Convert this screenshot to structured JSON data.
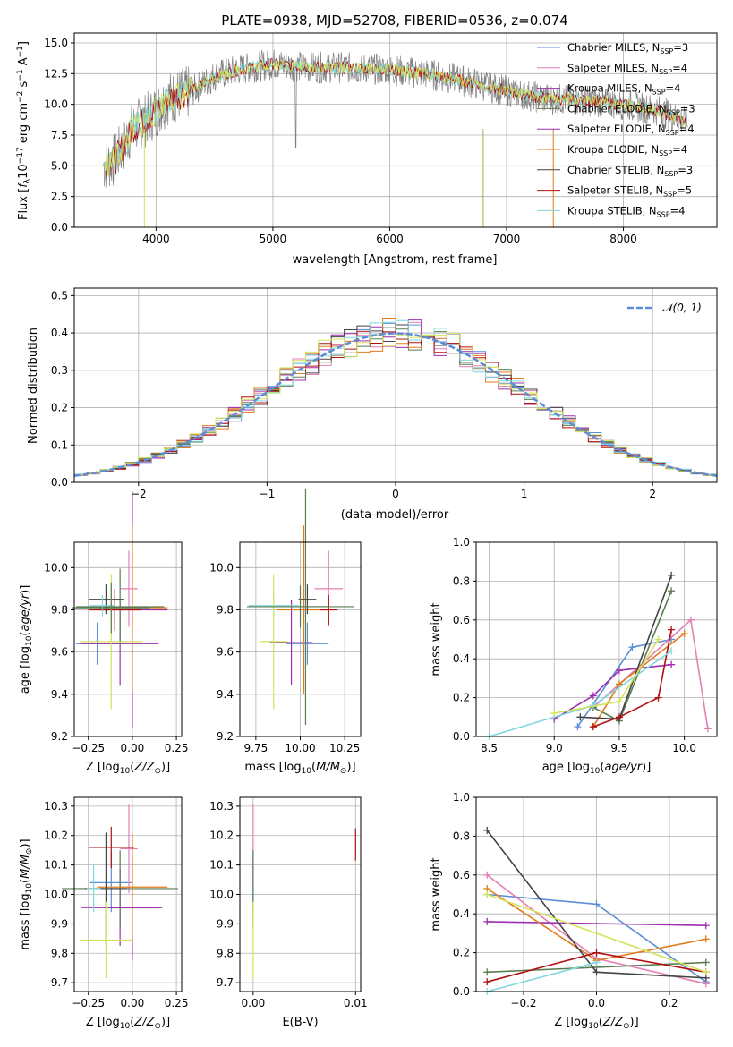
{
  "colors": {
    "Chabrier MILES": "#5b8ed6",
    "Salpeter MILES": "#e47fb4",
    "Kroupa MILES": "#9c2fae",
    "Chabrier ELODIE": "#5a7c52",
    "Salpeter ELODIE": "#9c2fae",
    "Kroupa ELODIE": "#e07b1c",
    "Chabrier STELIB": "#444444",
    "Salpeter STELIB": "#b01010",
    "Kroupa STELIB": "#7fd6dc",
    "Extra": "#d4e45a",
    "spectrum": "#808080",
    "normal": "#5b8ed6",
    "grid": "#b0b0b0"
  },
  "chart_data": [
    {
      "type": "line",
      "title": "PLATE=0938, MJD=52708, FIBERID=0536, z=0.074",
      "xlabel": "wavelength [Angstrom, rest frame]",
      "ylabel": "Flux [f_λ10^-17 erg cm^-2 s^-1 A^-1]",
      "xlim": [
        3300,
        8800
      ],
      "ylim": [
        0,
        15.8
      ],
      "xticks": [
        4000,
        5000,
        6000,
        7000,
        8000
      ],
      "yticks": [
        0.0,
        2.5,
        5.0,
        7.5,
        10.0,
        12.5,
        15.0
      ],
      "ytick_labels": [
        "0.0",
        "2.5",
        "5.0",
        "7.5",
        "10.0",
        "12.5",
        "15.0"
      ],
      "legend_position": "top-right",
      "legend": [
        "Chabrier MILES, N_SSP=3",
        "Salpeter MILES, N_SSP=4",
        "Kroupa MILES, N_SSP=4",
        "Chabrier ELODIE, N_SSP=3",
        "Salpeter ELODIE, N_SSP=4",
        "Kroupa ELODIE, N_SSP=4",
        "Chabrier STELIB, N_SSP=3",
        "Salpeter STELIB, N_SSP=5",
        "Kroupa STELIB, N_SSP=4"
      ],
      "continuum": [
        [
          3550,
          5.0
        ],
        [
          3650,
          5.5
        ],
        [
          3800,
          8.0
        ],
        [
          3950,
          9.0
        ],
        [
          4100,
          10.5
        ],
        [
          4300,
          11.0
        ],
        [
          4500,
          12.3
        ],
        [
          4700,
          12.8
        ],
        [
          5000,
          13.3
        ],
        [
          5300,
          13.0
        ],
        [
          5600,
          13.0
        ],
        [
          6000,
          12.8
        ],
        [
          6300,
          12.5
        ],
        [
          6600,
          12.0
        ],
        [
          6900,
          11.3
        ],
        [
          7300,
          10.5
        ],
        [
          7700,
          10.3
        ],
        [
          8000,
          10.0
        ],
        [
          8300,
          9.5
        ],
        [
          8550,
          8.5
        ]
      ]
    },
    {
      "type": "histogram",
      "xlabel": "(data-model)/error",
      "ylabel": "Normed distribution",
      "xlim": [
        -2.5,
        2.5
      ],
      "ylim": [
        0,
        0.52
      ],
      "xticks": [
        -2,
        -1,
        0,
        1,
        2
      ],
      "yticks": [
        0.0,
        0.1,
        0.2,
        0.3,
        0.4,
        0.5
      ],
      "ytick_labels": [
        "0.0",
        "0.1",
        "0.2",
        "0.3",
        "0.4",
        "0.5"
      ],
      "legend_position": "top-right",
      "legend": [
        "𝒩(0, 1)"
      ],
      "bin_width": 0.1
    },
    {
      "type": "scatter",
      "xlabel": "Z [log10(Z/Z⊙)]",
      "ylabel": "age  [log10(age/yr)]",
      "xlim": [
        -0.33,
        0.28
      ],
      "ylim": [
        9.2,
        10.12
      ],
      "xticks": [
        -0.25,
        0.0,
        0.25
      ],
      "xtick_labels": [
        "−0.25",
        "0.00",
        "0.25"
      ],
      "yticks": [
        9.2,
        9.4,
        9.6,
        9.8,
        10.0
      ],
      "ytick_labels": [
        "9.2",
        "9.4",
        "9.6",
        "9.8",
        "10.0"
      ],
      "points": [
        {
          "x": -0.2,
          "y": 9.64,
          "xe": 0.12,
          "ye": 0.1,
          "c": "#5b8ed6"
        },
        {
          "x": -0.02,
          "y": 9.9,
          "xe": 0.05,
          "ye": 0.18,
          "c": "#e47fb4"
        },
        {
          "x": -0.07,
          "y": 9.64,
          "xe": 0.22,
          "ye": 0.2,
          "c": "#9c2fae"
        },
        {
          "x": -0.07,
          "y": 9.815,
          "xe": 0.25,
          "ye": 0.18,
          "c": "#5a7c52"
        },
        {
          "x": 0.0,
          "y": 9.8,
          "xe": 0.2,
          "ye": 0.56,
          "c": "#9c2fae"
        },
        {
          "x": 0.0,
          "y": 9.81,
          "xe": 0.2,
          "ye": 0.4,
          "c": "#e07b1c"
        },
        {
          "x": -0.15,
          "y": 9.85,
          "xe": 0.1,
          "ye": 0.07,
          "c": "#444444"
        },
        {
          "x": -0.1,
          "y": 9.8,
          "xe": 0.15,
          "ye": 0.1,
          "c": "#b01010"
        },
        {
          "x": -0.17,
          "y": 9.82,
          "xe": 0.07,
          "ye": 0.05,
          "c": "#7fd6dc"
        },
        {
          "x": -0.12,
          "y": 9.65,
          "xe": 0.18,
          "ye": 0.32,
          "c": "#d4e45a"
        },
        {
          "x": -0.12,
          "y": 9.81,
          "xe": 0.22,
          "ye": 0.12,
          "c": "#5a7c52"
        }
      ]
    },
    {
      "type": "scatter",
      "xlabel": "mass [log10(M/M⊙)]",
      "ylabel": "",
      "xlim": [
        9.66,
        10.34
      ],
      "ylim": [
        9.2,
        10.12
      ],
      "xticks": [
        9.75,
        10.0,
        10.25
      ],
      "xtick_labels": [
        "9.75",
        "10.00",
        "10.25"
      ],
      "yticks": [
        9.2,
        9.4,
        9.6,
        9.8,
        10.0
      ],
      "ytick_labels": [
        "9.2",
        "9.4",
        "9.6",
        "9.8",
        "10.0"
      ],
      "points": [
        {
          "x": 10.04,
          "y": 9.64,
          "xe": 0.12,
          "ye": 0.1,
          "c": "#5b8ed6"
        },
        {
          "x": 10.16,
          "y": 9.9,
          "xe": 0.08,
          "ye": 0.18,
          "c": "#e47fb4"
        },
        {
          "x": 9.95,
          "y": 9.645,
          "xe": 0.12,
          "ye": 0.2,
          "c": "#9c2fae"
        },
        {
          "x": 10.03,
          "y": 9.815,
          "xe": 0.12,
          "ye": 0.56,
          "c": "#5a7c52"
        },
        {
          "x": 10.02,
          "y": 9.8,
          "xe": 0.15,
          "ye": 0.4,
          "c": "#e07b1c"
        },
        {
          "x": 10.04,
          "y": 9.85,
          "xe": 0.05,
          "ye": 0.07,
          "c": "#444444"
        },
        {
          "x": 10.16,
          "y": 9.8,
          "xe": 0.05,
          "ye": 0.07,
          "c": "#b01010"
        },
        {
          "x": 9.85,
          "y": 9.82,
          "xe": 0.14,
          "ye": 0.05,
          "c": "#7fd6dc"
        },
        {
          "x": 9.85,
          "y": 9.65,
          "xe": 0.08,
          "ye": 0.32,
          "c": "#d4e45a"
        },
        {
          "x": 10.0,
          "y": 9.815,
          "xe": 0.3,
          "ye": 0.1,
          "c": "#5a7c52"
        }
      ]
    },
    {
      "type": "line",
      "xlabel": "age  [log10(age/yr)]",
      "ylabel": "mass weight",
      "xlim": [
        8.4,
        10.25
      ],
      "ylim": [
        0,
        1.0
      ],
      "xticks": [
        8.5,
        9.0,
        9.5,
        10.0
      ],
      "xtick_labels": [
        "8.5",
        "9.0",
        "9.5",
        "10.0"
      ],
      "yticks": [
        0.0,
        0.2,
        0.4,
        0.6,
        0.8,
        1.0
      ],
      "ytick_labels": [
        "0.0",
        "0.2",
        "0.4",
        "0.6",
        "0.8",
        "1.0"
      ],
      "series": [
        {
          "c": "#5b8ed6",
          "x": [
            9.18,
            9.6,
            9.9
          ],
          "y": [
            0.05,
            0.46,
            0.5
          ]
        },
        {
          "c": "#e47fb4",
          "x": [
            9.3,
            10.05,
            10.18
          ],
          "y": [
            0.15,
            0.6,
            0.04
          ]
        },
        {
          "c": "#9c2fae",
          "x": [
            9.0,
            9.3,
            9.5,
            9.9
          ],
          "y": [
            0.09,
            0.21,
            0.34,
            0.37
          ]
        },
        {
          "c": "#5a7c52",
          "x": [
            9.3,
            9.5,
            9.9
          ],
          "y": [
            0.15,
            0.08,
            0.75
          ]
        },
        {
          "c": "#e07b1c",
          "x": [
            9.3,
            9.5,
            10.0
          ],
          "y": [
            0.05,
            0.27,
            0.53
          ]
        },
        {
          "c": "#444444",
          "x": [
            9.2,
            9.5,
            9.9
          ],
          "y": [
            0.1,
            0.09,
            0.83
          ]
        },
        {
          "c": "#b01010",
          "x": [
            9.3,
            9.5,
            9.8,
            9.9
          ],
          "y": [
            0.05,
            0.1,
            0.2,
            0.55
          ]
        },
        {
          "c": "#7fd6dc",
          "x": [
            8.5,
            9.3,
            9.9
          ],
          "y": [
            0.0,
            0.16,
            0.44
          ]
        },
        {
          "c": "#d4e45a",
          "x": [
            9.0,
            9.5,
            9.8
          ],
          "y": [
            0.12,
            0.18,
            0.5
          ]
        }
      ]
    },
    {
      "type": "scatter",
      "xlabel": "Z [log10(Z/Z⊙)]",
      "ylabel": "mass [log10(M/M⊙)]",
      "xlim": [
        -0.33,
        0.28
      ],
      "ylim": [
        9.67,
        10.33
      ],
      "xticks": [
        -0.25,
        0.0,
        0.25
      ],
      "xtick_labels": [
        "−0.25",
        "0.00",
        "0.25"
      ],
      "yticks": [
        9.7,
        9.8,
        9.9,
        10.0,
        10.1,
        10.2,
        10.3
      ],
      "ytick_labels": [
        "9.7",
        "9.8",
        "9.9",
        "10.0",
        "10.1",
        "10.2",
        "10.3"
      ],
      "points": [
        {
          "x": -0.12,
          "y": 10.04,
          "xe": 0.12,
          "ye": 0.1,
          "c": "#5b8ed6"
        },
        {
          "x": -0.02,
          "y": 10.155,
          "xe": 0.05,
          "ye": 0.15,
          "c": "#e47fb4"
        },
        {
          "x": -0.07,
          "y": 9.955,
          "xe": 0.22,
          "ye": 0.13,
          "c": "#9c2fae"
        },
        {
          "x": -0.07,
          "y": 10.02,
          "xe": 0.33,
          "ye": 0.13,
          "c": "#5a7c52"
        },
        {
          "x": 0.0,
          "y": 9.955,
          "xe": 0.17,
          "ye": 0.18,
          "c": "#9c2fae"
        },
        {
          "x": 0.0,
          "y": 10.025,
          "xe": 0.2,
          "ye": 0.18,
          "c": "#e07b1c"
        },
        {
          "x": -0.15,
          "y": 10.02,
          "xe": 0.12,
          "ye": 0.19,
          "c": "#444444"
        },
        {
          "x": -0.12,
          "y": 10.16,
          "xe": 0.13,
          "ye": 0.07,
          "c": "#b01010"
        },
        {
          "x": -0.22,
          "y": 10.02,
          "xe": 0.04,
          "ye": 0.08,
          "c": "#7fd6dc"
        },
        {
          "x": -0.15,
          "y": 9.845,
          "xe": 0.15,
          "ye": 0.13,
          "c": "#d4e45a"
        }
      ]
    },
    {
      "type": "scatter",
      "xlabel": "E(B-V)",
      "ylabel": "",
      "xlim": [
        -0.0013,
        0.0105
      ],
      "ylim": [
        9.67,
        10.33
      ],
      "xticks": [
        0.0,
        0.01
      ],
      "xtick_labels": [
        "0.00",
        "0.01"
      ],
      "yticks": [
        9.7,
        9.8,
        9.9,
        10.0,
        10.1,
        10.2,
        10.3
      ],
      "ytick_labels": [
        "9.7",
        "9.8",
        "9.9",
        "10.0",
        "10.1",
        "10.2",
        "10.3"
      ],
      "points": [
        {
          "x": 0.0,
          "y": 10.04,
          "xe": 0,
          "ye": 0.1,
          "c": "#5b8ed6"
        },
        {
          "x": 0.0,
          "y": 10.155,
          "xe": 0,
          "ye": 0.15,
          "c": "#e47fb4"
        },
        {
          "x": 0.0,
          "y": 10.02,
          "xe": 0,
          "ye": 0.13,
          "c": "#5a7c52"
        },
        {
          "x": 0.0,
          "y": 9.845,
          "xe": 0,
          "ye": 0.13,
          "c": "#d4e45a"
        },
        {
          "x": 0.01,
          "y": 10.17,
          "xe": 0,
          "ye": 0.055,
          "c": "#b01010"
        }
      ]
    },
    {
      "type": "line",
      "xlabel": "Z [log10(Z/Z⊙)]",
      "ylabel": "mass weight",
      "xlim": [
        -0.33,
        0.33
      ],
      "ylim": [
        0,
        1.0
      ],
      "xticks": [
        -0.2,
        0.0,
        0.2
      ],
      "xtick_labels": [
        "−0.2",
        "0.0",
        "0.2"
      ],
      "yticks": [
        0.0,
        0.2,
        0.4,
        0.6,
        0.8,
        1.0
      ],
      "ytick_labels": [
        "0.0",
        "0.2",
        "0.4",
        "0.6",
        "0.8",
        "1.0"
      ],
      "series": [
        {
          "c": "#5b8ed6",
          "x": [
            -0.3,
            0.0,
            0.3
          ],
          "y": [
            0.5,
            0.45,
            0.05
          ]
        },
        {
          "c": "#e47fb4",
          "x": [
            -0.3,
            0.0,
            0.3
          ],
          "y": [
            0.6,
            0.17,
            0.04
          ]
        },
        {
          "c": "#9c2fae",
          "x": [
            -0.3,
            0.3
          ],
          "y": [
            0.36,
            0.34
          ]
        },
        {
          "c": "#5a7c52",
          "x": [
            -0.3,
            0.3
          ],
          "y": [
            0.1,
            0.15
          ]
        },
        {
          "c": "#e07b1c",
          "x": [
            -0.3,
            0.0,
            0.3
          ],
          "y": [
            0.53,
            0.16,
            0.27
          ]
        },
        {
          "c": "#444444",
          "x": [
            -0.3,
            0.0,
            0.3
          ],
          "y": [
            0.83,
            0.1,
            0.07
          ]
        },
        {
          "c": "#b01010",
          "x": [
            -0.3,
            0.0,
            0.3
          ],
          "y": [
            0.05,
            0.2,
            0.1
          ]
        },
        {
          "c": "#7fd6dc",
          "x": [
            -0.3,
            0.0
          ],
          "y": [
            0.0,
            0.15
          ]
        },
        {
          "c": "#d4e45a",
          "x": [
            -0.3,
            0.3
          ],
          "y": [
            0.5,
            0.1
          ]
        }
      ]
    }
  ]
}
